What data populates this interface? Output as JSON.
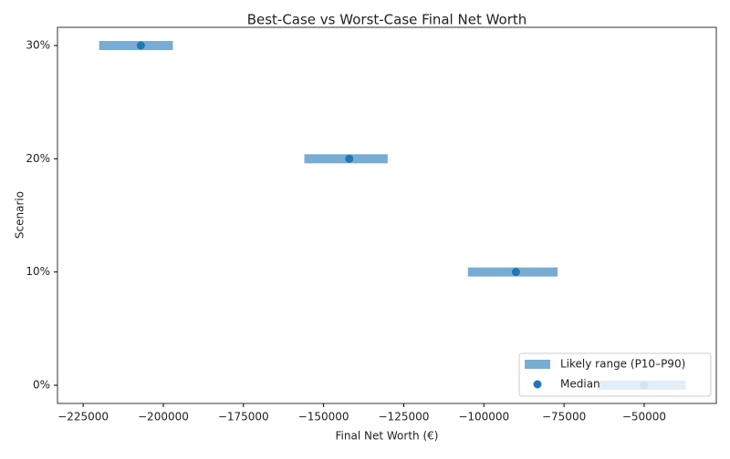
{
  "chart_data": {
    "type": "range",
    "title": "Best-Case vs Worst-Case Final Net Worth",
    "x_label": "Final Net Worth (€)",
    "y_label": "Scenario",
    "categories": [
      "0%",
      "10%",
      "20%",
      "30%"
    ],
    "series": [
      {
        "name": "Likely range (P10–P90)",
        "color": "#79acd3",
        "low": [
          -64000,
          -105000,
          -156000,
          -220000
        ],
        "high": [
          -37000,
          -77000,
          -130000,
          -197000
        ]
      },
      {
        "name": "Median",
        "color": "#1f77b4",
        "values": [
          -50000,
          -90000,
          -142000,
          -207000
        ]
      }
    ],
    "xlim": [
      -233000,
      -27500
    ],
    "xticks": [
      {
        "value": -225000,
        "label": "−225000"
      },
      {
        "value": -200000,
        "label": "−200000"
      },
      {
        "value": -175000,
        "label": "−175000"
      },
      {
        "value": -150000,
        "label": "−150000"
      },
      {
        "value": -125000,
        "label": "−125000"
      },
      {
        "value": -100000,
        "label": "−100000"
      },
      {
        "value": -75000,
        "label": "−75000"
      },
      {
        "value": -50000,
        "label": "−50000"
      }
    ],
    "legend": "lower right"
  }
}
